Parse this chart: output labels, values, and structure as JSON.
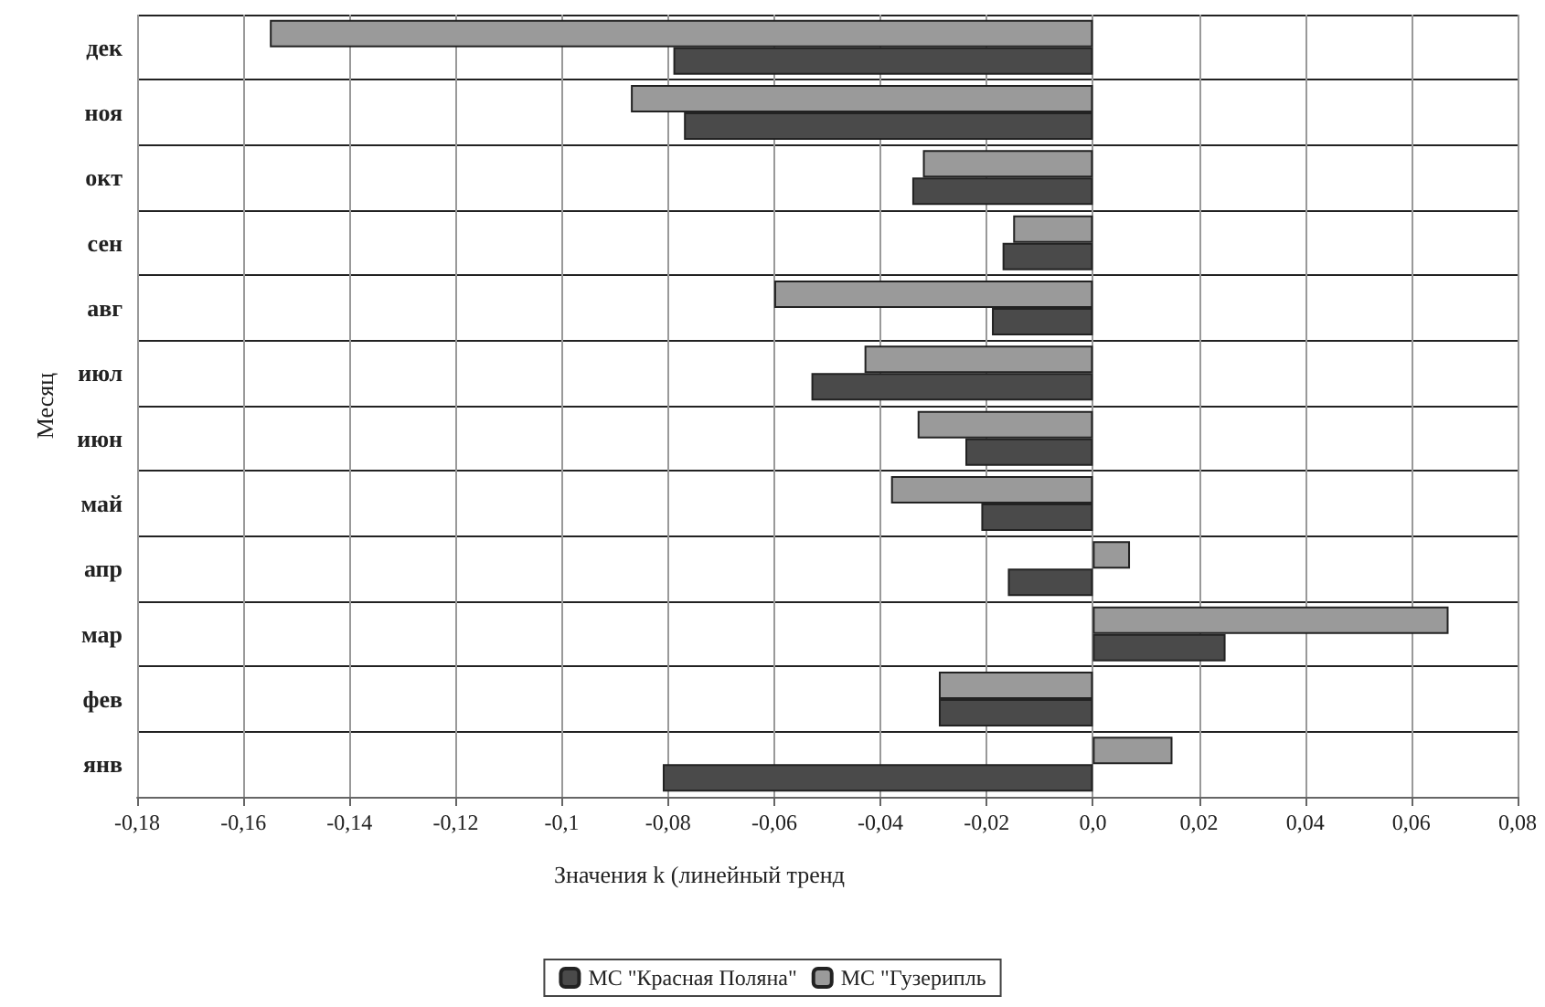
{
  "chart_data": {
    "type": "bar",
    "orientation": "horizontal",
    "categories": [
      "дек",
      "ноя",
      "окт",
      "сен",
      "авг",
      "июл",
      "июн",
      "май",
      "апр",
      "мар",
      "фев",
      "янв"
    ],
    "series": [
      {
        "name": "МС \"Гузерипль",
        "color": "#9a9a9a",
        "values": [
          -0.155,
          -0.087,
          -0.032,
          -0.015,
          -0.06,
          -0.043,
          -0.033,
          -0.038,
          0.007,
          0.067,
          -0.029,
          0.015
        ]
      },
      {
        "name": "МС \"Красная Поляна\"",
        "color": "#4a4a4a",
        "values": [
          -0.079,
          -0.077,
          -0.034,
          -0.017,
          -0.019,
          -0.053,
          -0.024,
          -0.021,
          -0.016,
          0.025,
          -0.029,
          -0.081
        ]
      }
    ],
    "xlim": [
      -0.18,
      0.08
    ],
    "xticks": [
      {
        "value": -0.18,
        "label": "-0,18"
      },
      {
        "value": -0.16,
        "label": "-0,16"
      },
      {
        "value": -0.14,
        "label": "-0,14"
      },
      {
        "value": -0.12,
        "label": "-0,12"
      },
      {
        "value": -0.1,
        "label": "-0,1"
      },
      {
        "value": -0.08,
        "label": "-0,08"
      },
      {
        "value": -0.06,
        "label": "-0,06"
      },
      {
        "value": -0.04,
        "label": "-0,04"
      },
      {
        "value": -0.02,
        "label": "-0,02"
      },
      {
        "value": 0,
        "label": "0,0"
      },
      {
        "value": 0.02,
        "label": "0,02"
      },
      {
        "value": 0.04,
        "label": "0,04"
      },
      {
        "value": 0.06,
        "label": "0,06"
      },
      {
        "value": 0.08,
        "label": "0,08"
      }
    ],
    "xlabel": "Значения k (линейный тренд",
    "ylabel": "Месяц",
    "grid": true,
    "legend": "bottom"
  }
}
